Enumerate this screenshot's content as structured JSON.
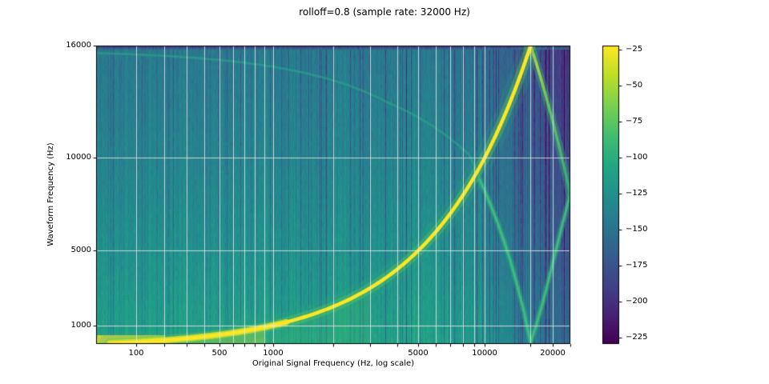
{
  "title": "rolloff=0.8 (sample rate: 32000 Hz)",
  "chart_data": {
    "type": "heatmap",
    "title": "rolloff=0.8 (sample rate: 32000 Hz)",
    "xlabel": "Original Signal Frequency (Hz, log scale)",
    "ylabel": "Waveform Frequency (Hz)",
    "grid": true,
    "x_axis": {
      "scale": "log",
      "range_hz": [
        0,
        24000
      ],
      "major_ticks": {
        "values": [
          100,
          500,
          1000,
          5000,
          10000,
          20000
        ],
        "labels": [
          "100",
          "500",
          "1000",
          "5000",
          "10000",
          "20000"
        ]
      },
      "minor_tick_values": [
        200,
        300,
        400,
        600,
        700,
        800,
        900,
        2000,
        3000,
        4000,
        6000,
        7000,
        8000,
        9000,
        16000,
        24000
      ]
    },
    "y_axis": {
      "scale": "linear",
      "range_hz": [
        0,
        16000
      ],
      "ticks": {
        "values": [
          16000,
          10000,
          5000,
          1000
        ],
        "labels": [
          "16000",
          "10000",
          "5000",
          "1000"
        ]
      }
    },
    "colorbar": {
      "colormap": "viridis",
      "value_range": [
        -230,
        -22
      ],
      "tick_values": [
        -25,
        -50,
        -75,
        -100,
        -125,
        -150,
        -175,
        -200,
        -225
      ],
      "tick_labels": [
        "−25",
        "−50",
        "−75",
        "−100",
        "−125",
        "−150",
        "−175",
        "−200",
        "−225"
      ]
    },
    "series": [
      {
        "name": "fundamental-sweep-ridge",
        "description": "bright ridge, waveform frequency = original frequency",
        "approx_level": -25,
        "points_hz": [
          [
            30,
            30
          ],
          [
            100,
            100
          ],
          [
            300,
            300
          ],
          [
            500,
            500
          ],
          [
            1000,
            1000
          ],
          [
            2000,
            2000
          ],
          [
            3000,
            3000
          ],
          [
            5000,
            5000
          ],
          [
            8000,
            8000
          ],
          [
            10000,
            10000
          ],
          [
            12800,
            12800
          ],
          [
            14000,
            14000
          ],
          [
            16000,
            16000
          ]
        ]
      },
      {
        "name": "alias-foldback",
        "description": "fold at Nyquist 16000 Hz: y = 32000 - x",
        "approx_level": -90,
        "points_hz": [
          [
            16000,
            16000
          ],
          [
            18000,
            14000
          ],
          [
            20000,
            12000
          ],
          [
            22000,
            10000
          ],
          [
            24000,
            8000
          ]
        ]
      },
      {
        "name": "faint-image-arc",
        "description": "weak image descending from ~15600 Hz to 0 Hz at 16000 Hz, rising back to ~8000 Hz at 24000 Hz",
        "approx_level": -120,
        "points_hz": [
          [
            0,
            15600
          ],
          [
            400,
            15300
          ],
          [
            1500,
            14500
          ],
          [
            3700,
            12900
          ],
          [
            6400,
            11350
          ],
          [
            8500,
            10150
          ],
          [
            9500,
            8800
          ],
          [
            11400,
            6500
          ],
          [
            13200,
            4200
          ],
          [
            14900,
            1800
          ],
          [
            16000,
            60
          ],
          [
            18000,
            2100
          ],
          [
            20000,
            4300
          ],
          [
            22000,
            6300
          ],
          [
            24000,
            8100
          ]
        ]
      },
      {
        "name": "background-noise-floor",
        "description": "striped noise floor, darker (more attenuated) toward high original frequencies",
        "approx_level": -145
      }
    ]
  }
}
